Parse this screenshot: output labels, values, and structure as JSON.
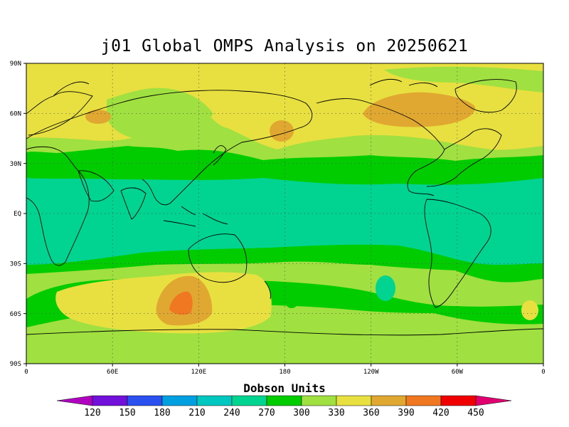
{
  "title": "j01 Global OMPS Analysis on 20250621",
  "colorbar": {
    "title": "Dobson Units",
    "labels": [
      "120",
      "150",
      "180",
      "210",
      "240",
      "270",
      "300",
      "330",
      "360",
      "390",
      "420",
      "450"
    ],
    "colors": [
      "#b000c0",
      "#7010d8",
      "#2a50f0",
      "#00a0e0",
      "#00c8c0",
      "#00d490",
      "#00cc00",
      "#a0e040",
      "#e8e040",
      "#e0a830",
      "#f07820",
      "#f00000",
      "#e00070"
    ]
  },
  "axes": {
    "lat_labels": [
      "90N",
      "60N",
      "30N",
      "EQ",
      "30S",
      "60S",
      "90S"
    ],
    "lon_labels": [
      "0",
      "60E",
      "120E",
      "180",
      "120W",
      "60W",
      "0"
    ]
  },
  "colors": {
    "c270": "#00d490",
    "c300": "#00cc00",
    "c330": "#a0e040",
    "c360": "#e8e040",
    "c390": "#e0a830",
    "c420": "#f07820"
  }
}
